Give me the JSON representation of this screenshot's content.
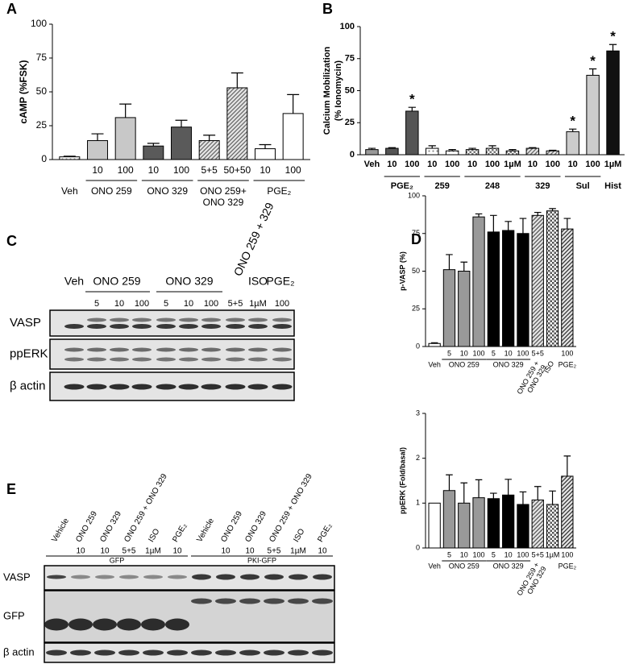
{
  "chart_data": [
    {
      "type": "bar",
      "panel": "A",
      "ylabel": "cAMP (%FSK)",
      "ylim": [
        0,
        100
      ],
      "yticks": [
        0,
        25,
        50,
        75,
        100
      ],
      "categories": [
        null,
        "10",
        "100",
        "10",
        "100",
        "5+5",
        "50+50",
        "10",
        "100"
      ],
      "values": [
        2,
        14,
        31,
        10,
        24,
        14,
        53,
        8,
        34
      ],
      "errors": [
        0.5,
        5,
        10,
        2,
        5,
        4,
        11,
        3,
        14
      ],
      "colors": [
        "#999999",
        "#c8c8c8",
        "#c8c8c8",
        "#5a5a5a",
        "#5a5a5a",
        "#666666",
        "#666666",
        "#ffffff",
        "#ffffff"
      ],
      "patterns": [
        "dots",
        "solid",
        "solid",
        "solid",
        "solid",
        "hatch",
        "hatch",
        "solid",
        "solid"
      ],
      "groups": [
        {
          "label": "Veh",
          "count": 1
        },
        {
          "label": "ONO 259",
          "count": 2
        },
        {
          "label": "ONO 329",
          "count": 2
        },
        {
          "label": [
            "ONO 259+",
            "ONO 329"
          ],
          "count": 2
        },
        {
          "label": "PGE₂",
          "count": 2
        }
      ]
    },
    {
      "type": "bar",
      "panel": "B",
      "ylabel": [
        "Calcium Mobilization",
        "(% Ionomycin)"
      ],
      "ylim": [
        0,
        100
      ],
      "yticks": [
        0,
        25,
        50,
        75,
        100
      ],
      "categories": [
        "Veh",
        "10",
        "100",
        "10",
        "100",
        "10",
        "100",
        "1µM",
        "10",
        "100",
        "10",
        "100",
        "1µM"
      ],
      "values": [
        4,
        5,
        34,
        5,
        3,
        4,
        5,
        3,
        5,
        3,
        18,
        62,
        81
      ],
      "errors": [
        1,
        0.5,
        3,
        2,
        1,
        1,
        2,
        1,
        0.5,
        0.5,
        2,
        5,
        5
      ],
      "annotations": [
        null,
        null,
        "*",
        null,
        null,
        null,
        null,
        null,
        null,
        null,
        "*",
        "*",
        "*"
      ],
      "colors": [
        "#999999",
        "#555555",
        "#555555",
        "#888888",
        "#888888",
        "#777777",
        "#777777",
        "#777777",
        "#666666",
        "#666666",
        "#cccccc",
        "#cccccc",
        "#111111"
      ],
      "patterns": [
        "solid",
        "solid",
        "solid",
        "dots",
        "dots",
        "check",
        "check",
        "check",
        "hatch",
        "hatch",
        "solid",
        "solid",
        "solid"
      ],
      "groups": [
        {
          "label": null,
          "count": 1
        },
        {
          "label": "PGE₂",
          "count": 2
        },
        {
          "label": "259",
          "count": 2
        },
        {
          "label": "248",
          "count": 3
        },
        {
          "label": "329",
          "count": 2
        },
        {
          "label": "Sul",
          "count": 2
        },
        {
          "label": "Hist",
          "count": 1
        }
      ]
    },
    {
      "type": "bar",
      "panel": "D",
      "ylabel": "p-VASP (%)",
      "ylim": [
        0,
        100
      ],
      "yticks": [
        0,
        25,
        50,
        75,
        100
      ],
      "categories": [
        null,
        "5",
        "10",
        "100",
        "5",
        "10",
        "100",
        "5+5",
        null,
        "100"
      ],
      "values": [
        2,
        51,
        50,
        86,
        76,
        77,
        75,
        87,
        90,
        78
      ],
      "errors": [
        0.5,
        10,
        6,
        2,
        11,
        6,
        10,
        2,
        1.5,
        7
      ],
      "colors": [
        "#ffffff",
        "#999999",
        "#999999",
        "#999999",
        "#000000",
        "#000000",
        "#000000",
        "#555555",
        "#555555",
        "#333333"
      ],
      "patterns": [
        "solid",
        "solid",
        "solid",
        "solid",
        "solid",
        "solid",
        "solid",
        "hatch",
        "check",
        "hatch"
      ],
      "groups": [
        {
          "label": "Veh",
          "count": 1
        },
        {
          "label": "ONO 259",
          "count": 3
        },
        {
          "label": "ONO 329",
          "count": 3
        },
        {
          "label": [
            "ONO 259 +",
            "ONO 329"
          ],
          "count": 1,
          "rotate": true
        },
        {
          "label": "ISO",
          "count": 1,
          "rotate": true
        },
        {
          "label": "PGE₂",
          "count": 1
        }
      ]
    },
    {
      "type": "bar",
      "ylabel": "ppERK (Fold/basal)",
      "ylim": [
        0,
        3
      ],
      "yticks": [
        0,
        1,
        2,
        3
      ],
      "categories": [
        null,
        "5",
        "10",
        "100",
        "5",
        "10",
        "100",
        "5+5",
        "1µM",
        "100"
      ],
      "values": [
        1,
        1.28,
        1.0,
        1.12,
        1.1,
        1.18,
        0.97,
        1.07,
        0.97,
        1.6
      ],
      "errors": [
        null,
        0.35,
        0.45,
        0.4,
        0.12,
        0.35,
        0.28,
        0.3,
        0.3,
        0.45
      ],
      "colors": [
        "#ffffff",
        "#999999",
        "#999999",
        "#999999",
        "#000000",
        "#000000",
        "#000000",
        "#555555",
        "#555555",
        "#333333"
      ],
      "patterns": [
        "solid",
        "solid",
        "solid",
        "solid",
        "solid",
        "solid",
        "solid",
        "hatch",
        "check",
        "hatch"
      ],
      "groups": [
        {
          "label": "Veh",
          "count": 1
        },
        {
          "label": "ONO 259",
          "count": 3
        },
        {
          "label": "ONO 329",
          "count": 3
        },
        {
          "label": [
            "ONO 259 +",
            "ONO 329"
          ],
          "count": 1,
          "rotate": true
        },
        {
          "label": null,
          "count": 1
        },
        {
          "label": "PGE₂",
          "count": 1
        }
      ]
    }
  ],
  "blot_c": {
    "panel": "C",
    "treatments": [
      "Veh",
      "ONO 259",
      "ONO 329",
      "ONO 259 + 329",
      "ISO",
      "PGE₂"
    ],
    "doses": [
      "5",
      "10",
      "100",
      "5",
      "10",
      "100",
      "5+5",
      "1µM",
      "100"
    ],
    "rows": [
      "VASP",
      "ppERK",
      "β actin"
    ]
  },
  "blot_e": {
    "panel": "E",
    "sets": [
      {
        "name": "GFP",
        "lanes": [
          "Vehicle",
          "ONO 259",
          "ONO 329",
          "ONO 259 + ONO 329",
          "ISO",
          "PGE₂"
        ],
        "doses": [
          null,
          "10",
          "10",
          "5+5",
          "1µM",
          "10"
        ]
      },
      {
        "name": "PKI-GFP",
        "lanes": [
          "Vehicle",
          "ONO 259",
          "ONO 329",
          "ONO 259 + ONO 329",
          "ISO",
          "PGE₂"
        ],
        "doses": [
          null,
          "10",
          "10",
          "5+5",
          "1µM",
          "10"
        ]
      }
    ],
    "rows": [
      "VASP",
      "GFP",
      "β actin"
    ]
  }
}
